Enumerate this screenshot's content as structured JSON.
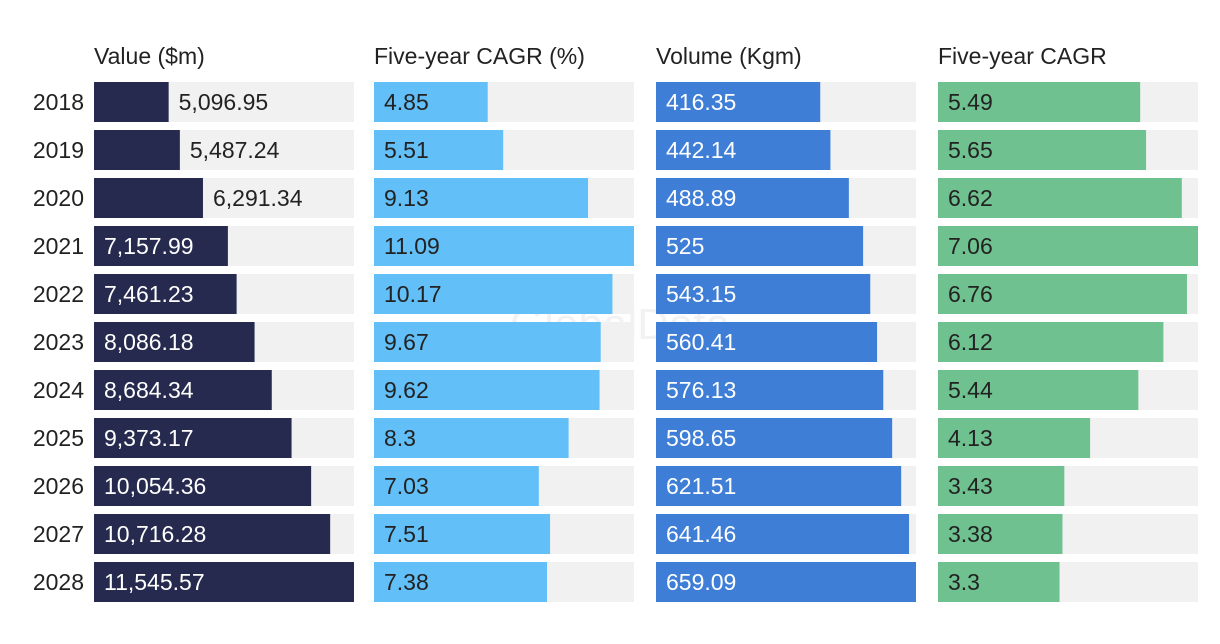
{
  "chart_data": {
    "type": "bar",
    "orientation": "horizontal",
    "categories": [
      "2018",
      "2019",
      "2020",
      "2021",
      "2022",
      "2023",
      "2024",
      "2025",
      "2026",
      "2027",
      "2028"
    ],
    "series": [
      {
        "name": "Value ($m)",
        "color": "#262a4e",
        "label_color_inside": "#ffffff",
        "label_color_outside": "#222222",
        "values": [
          5096.95,
          5487.24,
          6291.34,
          7157.99,
          7461.23,
          8086.18,
          8684.34,
          9373.17,
          10054.36,
          10716.28,
          11545.57
        ],
        "labels": [
          "5,096.95",
          "5,487.24",
          "6,291.34",
          "7,157.99",
          "7,461.23",
          "8,086.18",
          "8,684.34",
          "9,373.17",
          "10,054.36",
          "10,716.28",
          "11,545.57"
        ],
        "xlim": [
          2500,
          11545.57
        ]
      },
      {
        "name": "Five-year CAGR (%)",
        "color": "#62bff7",
        "label_color_inside": "#222222",
        "label_color_outside": "#222222",
        "values": [
          4.85,
          5.51,
          9.13,
          11.09,
          10.17,
          9.67,
          9.62,
          8.3,
          7.03,
          7.51,
          7.38
        ],
        "labels": [
          "4.85",
          "5.51",
          "9.13",
          "11.09",
          "10.17",
          "9.67",
          "9.62",
          "8.3",
          "7.03",
          "7.51",
          "7.38"
        ],
        "xlim": [
          0,
          11.09
        ]
      },
      {
        "name": "Volume (Kgm)",
        "color": "#3e7ed7",
        "label_color_inside": "#ffffff",
        "label_color_outside": "#222222",
        "values": [
          416.35,
          442.14,
          488.89,
          525,
          543.15,
          560.41,
          576.13,
          598.65,
          621.51,
          641.46,
          659.09
        ],
        "labels": [
          "416.35",
          "442.14",
          "488.89",
          "525",
          "543.15",
          "560.41",
          "576.13",
          "598.65",
          "621.51",
          "641.46",
          "659.09"
        ],
        "xlim": [
          0,
          659.09
        ]
      },
      {
        "name": "Five-year CAGR",
        "color": "#6fc190",
        "label_color_inside": "#222222",
        "label_color_outside": "#222222",
        "values": [
          5.49,
          5.65,
          6.62,
          7.06,
          6.76,
          6.12,
          5.44,
          4.13,
          3.43,
          3.38,
          3.3
        ],
        "labels": [
          "5.49",
          "5.65",
          "6.62",
          "7.06",
          "6.76",
          "6.12",
          "5.44",
          "4.13",
          "3.43",
          "3.38",
          "3.3"
        ],
        "xlim": [
          0,
          7.06
        ]
      }
    ],
    "track_color": "#f1f1f2",
    "grid": false,
    "legend": "none",
    "watermark": "GlobalData"
  }
}
